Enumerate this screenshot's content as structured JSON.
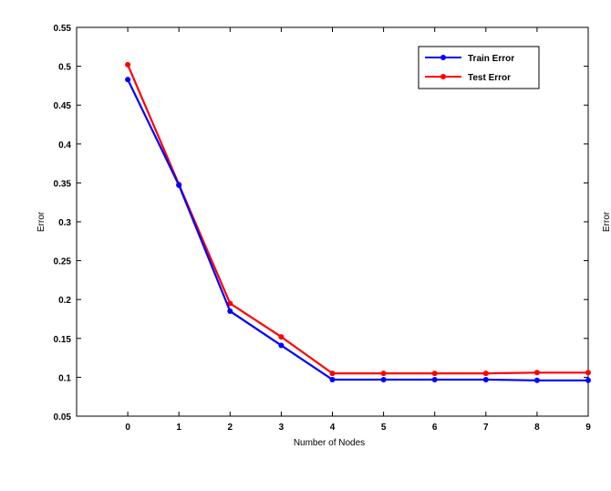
{
  "chart_data": {
    "type": "line",
    "title": "",
    "xlabel": "Number of Nodes",
    "ylabel": "Error",
    "clipped_label": "Error",
    "x": [
      0,
      1,
      2,
      3,
      4,
      5,
      6,
      7,
      8,
      9
    ],
    "x_ticks": [
      "0",
      "1",
      "2",
      "3",
      "4",
      "5",
      "6",
      "7",
      "8",
      "9"
    ],
    "y_ticks": [
      "0.55",
      "0.5",
      "0.45",
      "0.4",
      "0.35",
      "0.3",
      "0.25",
      "0.2",
      "0.15",
      "0.1",
      "0.05"
    ],
    "xlim": [
      -1,
      9
    ],
    "ylim": [
      0.05,
      0.55
    ],
    "grid": false,
    "legend_position": "top-right",
    "series": [
      {
        "name": "Train Error",
        "color": "#0000ff",
        "values": [
          0.483,
          0.347,
          0.185,
          0.141,
          0.097,
          0.097,
          0.097,
          0.097,
          0.096,
          0.096
        ]
      },
      {
        "name": "Test Error",
        "color": "#ff0000",
        "values": [
          0.502,
          0.348,
          0.195,
          0.152,
          0.105,
          0.105,
          0.105,
          0.105,
          0.106,
          0.106
        ]
      }
    ]
  }
}
